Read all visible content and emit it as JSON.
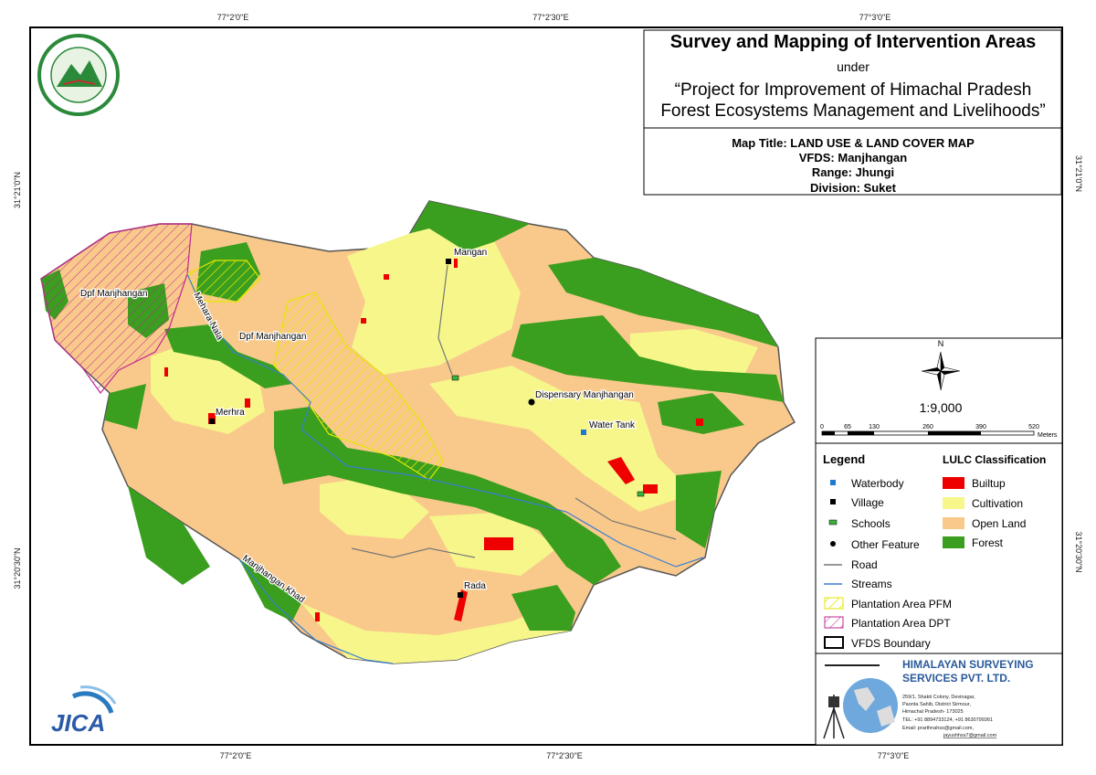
{
  "header": {
    "title": "Survey and Mapping of Intervention Areas",
    "under": "under",
    "project": [
      "“Project for Improvement of Himachal Pradesh",
      "Forest Ecosystems Management and Livelihoods”"
    ]
  },
  "map_info": {
    "map_title": "Map Title: LAND USE & LAND COVER MAP",
    "vfds": "VFDS: Manjhangan",
    "range": "Range: Jhungi",
    "division": "Division: Suket"
  },
  "coordinates": {
    "top": [
      "77°2'0\"E",
      "77°2'30\"E",
      "77°3'0\"E"
    ],
    "bottom": [
      "77°2'0\"E",
      "77°2'30\"E",
      "77°3'0\"E"
    ],
    "left": [
      "31°21'0\"N",
      "31°20'30\"N"
    ],
    "right": [
      "31°21'0\"N",
      "31°20'30\"N"
    ]
  },
  "place_labels": [
    "Dpf Manjhangan",
    "Dpf Manjhangan",
    "Mehara Nala",
    "Merhra",
    "Mangan",
    "Dispensary Manjhangan",
    "Water Tank",
    "Rada",
    "Manjhangan Khad"
  ],
  "north_arrow": "N",
  "scale": {
    "ratio": "1:9,000",
    "ticks": [
      "0",
      "65",
      "130",
      "260",
      "390",
      "520"
    ],
    "unit": "Meters"
  },
  "legend": {
    "title": "Legend",
    "items": [
      "Waterbody",
      "Village",
      "Schools",
      "Other Feature",
      "Road",
      "Streams",
      "Plantation Area PFM",
      "Plantation Area DPT",
      "VFDS Boundary"
    ],
    "lulc_title": "LULC Classification",
    "lulc": [
      "Builtup",
      "Cultivation",
      "Open Land",
      "Forest"
    ]
  },
  "company": {
    "name": [
      "HIMALAYAN SURVEYING",
      "SERVICES PVT. LTD."
    ],
    "address": [
      "259/1, Shakti Colony, Devinagar,",
      "Paonta Sahib, District Sirmour,",
      "Himachal Pradesh- 173025",
      "TEL: +91 8894733124, +91 8630799361",
      "Email: prarthnahss@gmail.com,",
      "jayushhss7@gmail.com"
    ]
  },
  "jica_logo": "JICA"
}
